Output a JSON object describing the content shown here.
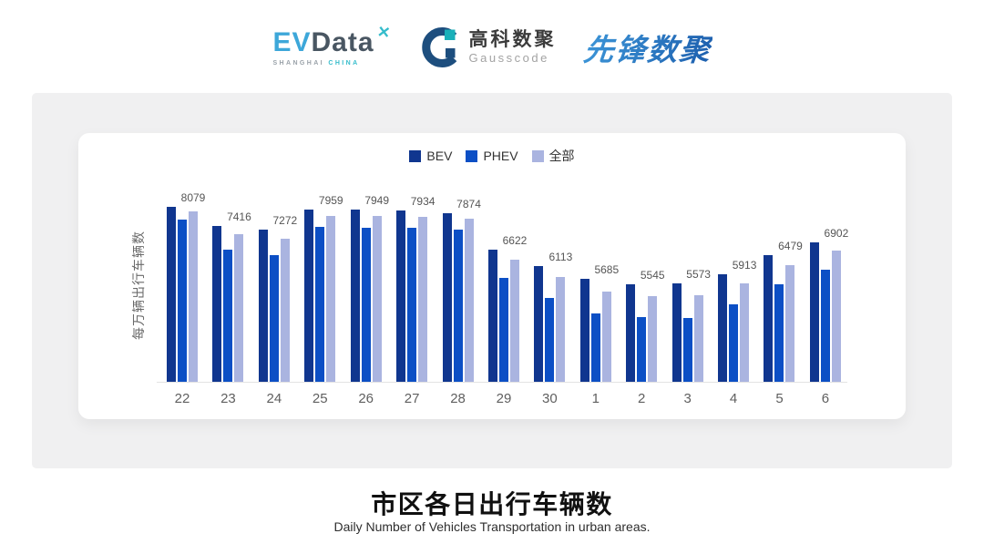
{
  "header": {
    "evdata": {
      "ev": "EV",
      "data": "Data",
      "mark": "✕",
      "sub_left": "SHANGHAI",
      "sub_right": "CHINA"
    },
    "gausscode": {
      "cn": "高科数聚",
      "en": "Gausscode"
    },
    "xianfeng": {
      "text": "先锋数聚"
    }
  },
  "chart_data": {
    "type": "bar",
    "title": "市区各日出行车辆数",
    "ylabel": "每万辆出行车辆数",
    "xlabel": "",
    "grid": false,
    "legend_position": "top-center",
    "ylim_estimated": [
      2950,
      8450
    ],
    "categories": [
      "22",
      "23",
      "24",
      "25",
      "26",
      "27",
      "28",
      "29",
      "30",
      "1",
      "2",
      "3",
      "4",
      "5",
      "6"
    ],
    "series": [
      {
        "key": "bev",
        "name": "BEV",
        "color": "#10368f",
        "values_estimated": true,
        "values": [
          8240,
          7660,
          7550,
          8160,
          8155,
          8130,
          8045,
          6925,
          6430,
          6045,
          5880,
          5910,
          6185,
          6760,
          7170
        ]
      },
      {
        "key": "phev",
        "name": "PHEV",
        "color": "#0c4fc5",
        "values_estimated": true,
        "values": [
          7855,
          6950,
          6760,
          7635,
          7610,
          7608,
          7553,
          6075,
          5470,
          5005,
          4895,
          4870,
          5280,
          5880,
          6320
        ]
      },
      {
        "key": "all",
        "name": "全部",
        "color": "#aab4e0",
        "values_estimated": false,
        "labels_shown": true,
        "values": [
          8079,
          7416,
          7272,
          7959,
          7949,
          7934,
          7874,
          6622,
          6113,
          5685,
          5545,
          5573,
          5913,
          6479,
          6902
        ]
      }
    ],
    "data_labels_series": "全部",
    "data_labels": [
      8079,
      7416,
      7272,
      7959,
      7949,
      7934,
      7874,
      6622,
      6113,
      5685,
      5545,
      5573,
      5913,
      6479,
      6902
    ]
  },
  "footer": {
    "title": "市区各日出行车辆数",
    "subtitle": "Daily Number of Vehicles Transportation in urban areas."
  },
  "colors": {
    "bev": "#10368f",
    "phev": "#0c4fc5",
    "all": "#aab4e0",
    "panel_bg": "#f0f0f1",
    "card_bg": "#ffffff",
    "axis_line": "#e3e3e3"
  }
}
